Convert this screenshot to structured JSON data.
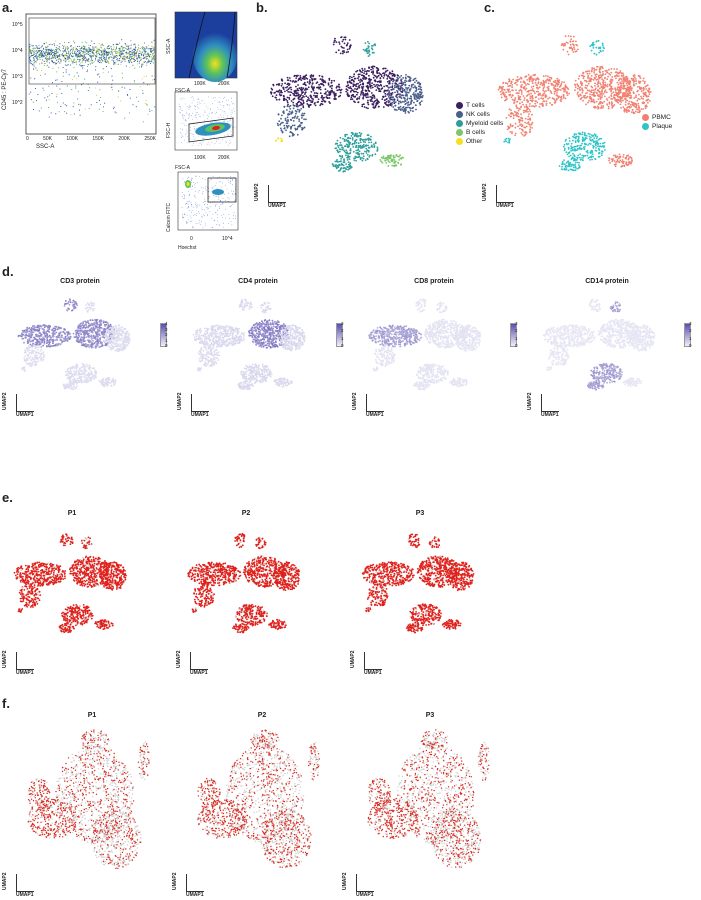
{
  "panels": {
    "a": "a.",
    "b": "b.",
    "c": "c.",
    "d": "d.",
    "e": "e.",
    "f": "f."
  },
  "panel_a": {
    "main_plot": {
      "xlabel": "SSC-A",
      "ylabel": "CD45 : PE-Cy7",
      "x_ticks": [
        "0",
        "50K",
        "100K",
        "150K",
        "200K",
        "250K"
      ],
      "y_ticks": [
        "10^5",
        "10^4",
        "10^3",
        "10^2"
      ]
    },
    "small1": {
      "xlabel": "FSC-A",
      "ylabel": "SSC-A",
      "y_ticks": [
        "250K",
        "200K",
        "150K",
        "100K",
        "50K",
        "0"
      ],
      "x_ticks": [
        "0",
        "100K",
        "200K"
      ]
    },
    "small2": {
      "xlabel": "FSC-A",
      "ylabel": "FSC-H",
      "y_ticks": [
        "250K",
        "200K",
        "150K",
        "100K",
        "50K"
      ],
      "x_ticks": [
        "100K",
        "200K"
      ]
    },
    "small3": {
      "xlabel": "Hoechst",
      "ylabel": "Calcein FITC",
      "y_ticks": [
        "10^4",
        "10^3",
        "0"
      ],
      "x_ticks": [
        "0",
        "10^4"
      ]
    }
  },
  "panel_b": {
    "legend": [
      {
        "label": "T cells",
        "color": "#3b1f5e"
      },
      {
        "label": "NK cells",
        "color": "#4a5e8c"
      },
      {
        "label": "Myeloid cells",
        "color": "#2e9e9a"
      },
      {
        "label": "B cells",
        "color": "#7cc66a"
      },
      {
        "label": "Other",
        "color": "#f2e21a"
      }
    ]
  },
  "panel_c": {
    "legend": [
      {
        "label": "PBMC",
        "color": "#f08070"
      },
      {
        "label": "Plaque",
        "color": "#2ec4c6"
      }
    ]
  },
  "panel_d": {
    "titles": [
      "CD3 protein",
      "CD4 protein",
      "CD8 protein",
      "CD14 protein"
    ],
    "colorbars": [
      [
        "4",
        "3",
        "2",
        "1",
        "0"
      ],
      [
        "3",
        "2",
        "1",
        "0"
      ],
      [
        "3",
        "2",
        "1",
        "0"
      ],
      [
        "3",
        "2",
        "1",
        "0"
      ]
    ]
  },
  "panel_e": {
    "titles": [
      "P1",
      "P2",
      "P3"
    ]
  },
  "panel_f": {
    "titles": [
      "P1",
      "P2",
      "P3"
    ]
  },
  "umap": {
    "x": "UMAP1",
    "y": "UMAP2"
  },
  "colors": {
    "highlight": "#e0201b",
    "grey": "#cfcfcf",
    "cd_protein": "#5a4fb0"
  }
}
